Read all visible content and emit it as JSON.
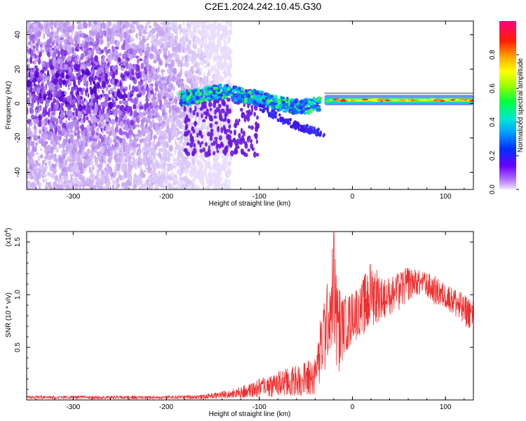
{
  "title": "C2E1.2024.242.10.45.G30",
  "colors": {
    "snr_line": "#ee3030",
    "frame": "#000000",
    "scatter_low": "#c9a8f2",
    "scatter_mid": "#7a2ae0",
    "scatter_high": "#5000c8"
  },
  "chart_data": [
    {
      "type": "heatmap",
      "title": "C2E1.2024.242.10.45.G30",
      "xlabel": "Height of straight line (km)",
      "ylabel": "Frequency (Hz)",
      "xlim": [
        -350,
        130
      ],
      "ylim": [
        -50,
        48
      ],
      "x_ticks": [
        -300,
        -200,
        -100,
        0,
        100
      ],
      "y_ticks": [
        -40,
        -20,
        0,
        20,
        40
      ],
      "colorbar": {
        "label": "Normalized spectral amplitude",
        "range": [
          0.0,
          1.0
        ],
        "ticks": [
          0.0,
          0.2,
          0.4,
          0.6,
          0.8
        ],
        "tick_labels": [
          "0.0",
          "0.2",
          "0.4",
          "0.6",
          "0.8"
        ],
        "colormap": "rainbow (purple-blue-cyan-green-yellow-orange-red-magenta)"
      },
      "features": {
        "diffuse_scatter_x_range": [
          -350,
          -130
        ],
        "diffuse_scatter_freq_range": [
          -50,
          48
        ],
        "dense_core_x_range": [
          -350,
          -180
        ],
        "dense_core_freq_range": [
          -30,
          45
        ],
        "trace": [
          {
            "x": -180,
            "y": 3
          },
          {
            "x": -160,
            "y": 5
          },
          {
            "x": -140,
            "y": 7
          },
          {
            "x": -120,
            "y": 5
          },
          {
            "x": -100,
            "y": 3
          },
          {
            "x": -80,
            "y": 0
          },
          {
            "x": -60,
            "y": -2
          },
          {
            "x": -40,
            "y": -1
          },
          {
            "x": -20,
            "y": 1
          },
          {
            "x": 0,
            "y": 1
          },
          {
            "x": 40,
            "y": 2
          },
          {
            "x": 80,
            "y": 2
          },
          {
            "x": 130,
            "y": 2
          }
        ],
        "secondary_branch": [
          {
            "x": -100,
            "y": -2
          },
          {
            "x": -80,
            "y": -8
          },
          {
            "x": -60,
            "y": -13
          },
          {
            "x": -35,
            "y": -17
          }
        ],
        "strong_band_x_range": [
          -30,
          130
        ],
        "strong_band_freq": 2
      }
    },
    {
      "type": "line",
      "xlabel": "Height of straight line (km)",
      "ylabel": "SNR (10 * v/v)",
      "y_multiplier_label": "(x10",
      "y_multiplier_exponent": "4",
      "xlim": [
        -350,
        130
      ],
      "ylim": [
        0,
        1.6
      ],
      "x_ticks": [
        -300,
        -200,
        -100,
        0,
        100
      ],
      "y_ticks": [
        0.5,
        1.0,
        1.5
      ],
      "y_tick_labels": [
        "0.5",
        "1.0",
        "1.5"
      ],
      "series": [
        {
          "color": "#ee3030",
          "envelope": [
            {
              "x": -350,
              "low": 0.01,
              "high": 0.04
            },
            {
              "x": -250,
              "low": 0.01,
              "high": 0.04
            },
            {
              "x": -200,
              "low": 0.01,
              "high": 0.04
            },
            {
              "x": -160,
              "low": 0.01,
              "high": 0.05
            },
            {
              "x": -130,
              "low": 0.02,
              "high": 0.1
            },
            {
              "x": -110,
              "low": 0.02,
              "high": 0.16
            },
            {
              "x": -90,
              "low": 0.03,
              "high": 0.25
            },
            {
              "x": -70,
              "low": 0.04,
              "high": 0.3
            },
            {
              "x": -50,
              "low": 0.04,
              "high": 0.37
            },
            {
              "x": -40,
              "low": 0.05,
              "high": 0.42
            },
            {
              "x": -30,
              "low": 0.25,
              "high": 1.05
            },
            {
              "x": -25,
              "low": 0.45,
              "high": 1.15
            },
            {
              "x": -20,
              "low": 0.35,
              "high": 1.6
            },
            {
              "x": -15,
              "low": 0.25,
              "high": 1.1
            },
            {
              "x": -10,
              "low": 0.4,
              "high": 1.0
            },
            {
              "x": 0,
              "low": 0.55,
              "high": 1.05
            },
            {
              "x": 10,
              "low": 0.6,
              "high": 1.12
            },
            {
              "x": 20,
              "low": 0.7,
              "high": 1.35
            },
            {
              "x": 35,
              "low": 0.78,
              "high": 1.15
            },
            {
              "x": 50,
              "low": 0.85,
              "high": 1.22
            },
            {
              "x": 60,
              "low": 0.95,
              "high": 1.27
            },
            {
              "x": 70,
              "low": 1.0,
              "high": 1.24
            },
            {
              "x": 85,
              "low": 0.92,
              "high": 1.2
            },
            {
              "x": 100,
              "low": 0.88,
              "high": 1.1
            },
            {
              "x": 110,
              "low": 0.8,
              "high": 1.08
            },
            {
              "x": 120,
              "low": 0.7,
              "high": 1.0
            },
            {
              "x": 130,
              "low": 0.68,
              "high": 0.95
            }
          ]
        }
      ]
    }
  ]
}
